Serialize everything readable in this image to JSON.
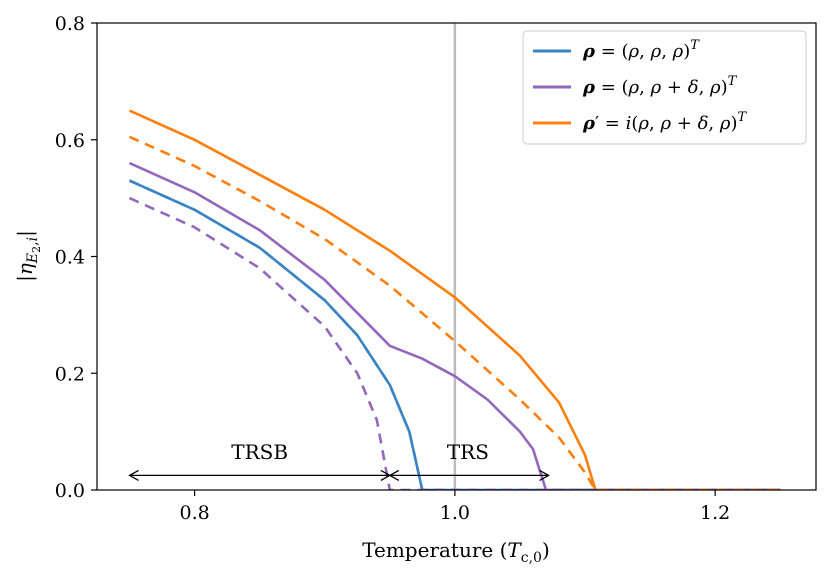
{
  "chart_data": {
    "type": "line",
    "title": "",
    "xlabel": "Temperature (T_c,0)",
    "ylabel": "|η_E2,i|",
    "xlim": [
      0.725,
      1.2775
    ],
    "ylim": [
      0.0,
      0.8
    ],
    "xticks": [
      0.8,
      1.0,
      1.2
    ],
    "yticks": [
      0.0,
      0.2,
      0.4,
      0.6,
      0.8
    ],
    "xtick_labels": [
      "0.8",
      "1.0",
      "1.2"
    ],
    "ytick_labels": [
      "0.0",
      "0.2",
      "0.4",
      "0.6",
      "0.8"
    ],
    "vline": {
      "x": 1.0,
      "color": "#bdbdbd"
    },
    "legend_position": "top-right",
    "series": [
      {
        "name": "ρ = (ρ, ρ, ρ)^T",
        "color": "#3b84c4",
        "style": "solid",
        "x": [
          0.75,
          0.8,
          0.85,
          0.9,
          0.925,
          0.95,
          0.965,
          0.975,
          1.0,
          1.25
        ],
        "y": [
          0.53,
          0.48,
          0.415,
          0.325,
          0.265,
          0.18,
          0.1,
          0.0,
          0.0,
          0.0
        ]
      },
      {
        "name": "ρ = (ρ, ρ, ρ)^T (component 2)",
        "color": "#3b84c4",
        "style": "dashed",
        "legend": false,
        "x": [
          0.75,
          0.8,
          0.85,
          0.9,
          0.925,
          0.95,
          0.965,
          0.975,
          1.0,
          1.25
        ],
        "y": [
          0.53,
          0.48,
          0.415,
          0.325,
          0.265,
          0.18,
          0.1,
          0.0,
          0.0,
          0.0
        ]
      },
      {
        "name": "ρ = (ρ, ρ + δ, ρ)^T",
        "color": "#9467bd",
        "style": "solid",
        "x": [
          0.75,
          0.8,
          0.85,
          0.9,
          0.95,
          0.975,
          1.0,
          1.025,
          1.05,
          1.06,
          1.07,
          1.1,
          1.25
        ],
        "y": [
          0.56,
          0.51,
          0.445,
          0.36,
          0.247,
          0.225,
          0.195,
          0.155,
          0.1,
          0.07,
          0.0,
          0.0,
          0.0
        ]
      },
      {
        "name": "ρ = (ρ, ρ + δ, ρ)^T (component 2)",
        "color": "#9467bd",
        "style": "dashed",
        "legend": false,
        "x": [
          0.75,
          0.8,
          0.85,
          0.9,
          0.925,
          0.94,
          0.95,
          1.0,
          1.25
        ],
        "y": [
          0.5,
          0.45,
          0.38,
          0.28,
          0.2,
          0.12,
          0.0,
          0.0,
          0.0
        ]
      },
      {
        "name": "ρ' = i(ρ, ρ + δ, ρ)^T",
        "color": "#ff7f0e",
        "style": "solid",
        "x": [
          0.75,
          0.8,
          0.85,
          0.9,
          0.95,
          1.0,
          1.05,
          1.08,
          1.1,
          1.108,
          1.25
        ],
        "y": [
          0.65,
          0.6,
          0.54,
          0.48,
          0.41,
          0.33,
          0.23,
          0.15,
          0.06,
          0.0,
          0.0
        ]
      },
      {
        "name": "ρ' = i(ρ, ρ + δ, ρ)^T (component 2)",
        "color": "#ff7f0e",
        "style": "dashed",
        "legend": false,
        "x": [
          0.75,
          0.8,
          0.85,
          0.9,
          0.95,
          1.0,
          1.05,
          1.08,
          1.1,
          1.108,
          1.25
        ],
        "y": [
          0.605,
          0.555,
          0.495,
          0.43,
          0.35,
          0.255,
          0.155,
          0.09,
          0.03,
          0.0,
          0.0
        ]
      }
    ],
    "annotations": [
      {
        "text": "TRSB",
        "x_from": 0.75,
        "x_to": 0.95,
        "y": 0.025,
        "label_x": 0.85,
        "label_y": 0.06
      },
      {
        "text": "TRS",
        "x_from": 0.95,
        "x_to": 1.072,
        "y": 0.025,
        "label_x": 1.01,
        "label_y": 0.06
      }
    ]
  }
}
